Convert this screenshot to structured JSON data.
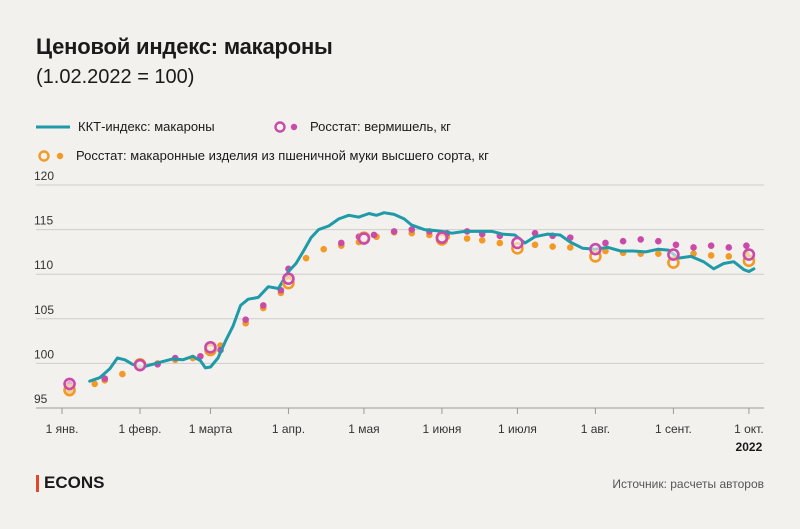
{
  "title": "Ценовой индекс: макароны",
  "subtitle": "(1.02.2022 = 100)",
  "legend": {
    "kkt": "ККТ-индекс: макароны",
    "rosstat_vermicelli": "Росстат: вермишель, кг",
    "rosstat_pasta": "Росстат: макаронные изделия из пшеничной муки высшего сорта, кг"
  },
  "brand": "ECONS",
  "source": "Источник: расчеты авторов",
  "colors": {
    "kkt": "#1f9aa8",
    "vermicelli": "#c94aa8",
    "pasta": "#f39a25"
  },
  "chart_data": {
    "type": "line",
    "ylim": [
      95,
      120
    ],
    "yticks": [
      95,
      100,
      105,
      110,
      115,
      120
    ],
    "xlim": [
      "2022-01-01",
      "2022-10-07"
    ],
    "xticks": [
      {
        "date": "2022-01-01",
        "label": "1 янв."
      },
      {
        "date": "2022-02-01",
        "label": "1 февр."
      },
      {
        "date": "2022-03-01",
        "label": "1 марта"
      },
      {
        "date": "2022-04-01",
        "label": "1 апр."
      },
      {
        "date": "2022-05-01",
        "label": "1 мая"
      },
      {
        "date": "2022-06-01",
        "label": "1 июня"
      },
      {
        "date": "2022-07-01",
        "label": "1 июля"
      },
      {
        "date": "2022-08-01",
        "label": "1 авг."
      },
      {
        "date": "2022-09-01",
        "label": "1 сент."
      },
      {
        "date": "2022-10-01",
        "label": "1 окт."
      }
    ],
    "year_label": "2022",
    "grid": true,
    "series": [
      {
        "name": "ККТ-индекс: макароны",
        "kind": "line",
        "points": [
          [
            "2022-01-12",
            98.0
          ],
          [
            "2022-01-16",
            98.4
          ],
          [
            "2022-01-20",
            99.4
          ],
          [
            "2022-01-23",
            100.6
          ],
          [
            "2022-01-26",
            100.4
          ],
          [
            "2022-01-29",
            99.9
          ],
          [
            "2022-02-02",
            99.6
          ],
          [
            "2022-02-06",
            99.9
          ],
          [
            "2022-02-10",
            100.2
          ],
          [
            "2022-02-14",
            100.5
          ],
          [
            "2022-02-18",
            100.4
          ],
          [
            "2022-02-22",
            100.8
          ],
          [
            "2022-02-25",
            100.3
          ],
          [
            "2022-02-27",
            99.5
          ],
          [
            "2022-03-01",
            99.6
          ],
          [
            "2022-03-04",
            100.6
          ],
          [
            "2022-03-07",
            102.5
          ],
          [
            "2022-03-10",
            104.2
          ],
          [
            "2022-03-13",
            106.5
          ],
          [
            "2022-03-16",
            107.2
          ],
          [
            "2022-03-20",
            107.4
          ],
          [
            "2022-03-24",
            108.6
          ],
          [
            "2022-03-28",
            108.4
          ],
          [
            "2022-04-01",
            110.3
          ],
          [
            "2022-04-04",
            111.2
          ],
          [
            "2022-04-07",
            112.6
          ],
          [
            "2022-04-10",
            114.1
          ],
          [
            "2022-04-13",
            115.0
          ],
          [
            "2022-04-17",
            115.4
          ],
          [
            "2022-04-21",
            116.2
          ],
          [
            "2022-04-25",
            116.6
          ],
          [
            "2022-04-29",
            116.4
          ],
          [
            "2022-05-03",
            116.8
          ],
          [
            "2022-05-06",
            116.6
          ],
          [
            "2022-05-09",
            116.9
          ],
          [
            "2022-05-13",
            116.7
          ],
          [
            "2022-05-17",
            116.2
          ],
          [
            "2022-05-20",
            115.5
          ],
          [
            "2022-05-25",
            115.0
          ],
          [
            "2022-05-29",
            114.9
          ],
          [
            "2022-06-01",
            114.8
          ],
          [
            "2022-06-05",
            114.6
          ],
          [
            "2022-06-10",
            114.8
          ],
          [
            "2022-06-15",
            114.8
          ],
          [
            "2022-06-21",
            114.8
          ],
          [
            "2022-06-25",
            114.5
          ],
          [
            "2022-06-30",
            114.4
          ],
          [
            "2022-07-04",
            113.5
          ],
          [
            "2022-07-08",
            114.2
          ],
          [
            "2022-07-13",
            114.5
          ],
          [
            "2022-07-18",
            114.4
          ],
          [
            "2022-07-22",
            113.6
          ],
          [
            "2022-07-27",
            112.9
          ],
          [
            "2022-08-01",
            112.8
          ],
          [
            "2022-08-06",
            113.0
          ],
          [
            "2022-08-11",
            112.6
          ],
          [
            "2022-08-16",
            112.6
          ],
          [
            "2022-08-21",
            112.5
          ],
          [
            "2022-08-26",
            112.8
          ],
          [
            "2022-08-30",
            112.7
          ],
          [
            "2022-09-03",
            111.8
          ],
          [
            "2022-09-08",
            112.0
          ],
          [
            "2022-09-13",
            111.4
          ],
          [
            "2022-09-17",
            110.6
          ],
          [
            "2022-09-21",
            111.2
          ],
          [
            "2022-09-25",
            111.4
          ],
          [
            "2022-09-29",
            110.5
          ],
          [
            "2022-10-01",
            110.3
          ],
          [
            "2022-10-03",
            110.6
          ]
        ]
      },
      {
        "name": "Росстат: вермишель, кг",
        "kind": "dots",
        "points": [
          [
            "2022-01-04",
            97.7
          ],
          [
            "2022-01-18",
            98.3
          ],
          [
            "2022-02-08",
            99.9
          ],
          [
            "2022-02-15",
            100.6
          ],
          [
            "2022-02-25",
            100.8
          ],
          [
            "2022-03-05",
            101.5
          ],
          [
            "2022-03-15",
            104.9
          ],
          [
            "2022-03-22",
            106.5
          ],
          [
            "2022-03-29",
            108.2
          ],
          [
            "2022-04-01",
            110.6
          ],
          [
            "2022-04-22",
            113.5
          ],
          [
            "2022-04-29",
            114.2
          ],
          [
            "2022-05-05",
            114.4
          ],
          [
            "2022-05-13",
            114.8
          ],
          [
            "2022-05-20",
            115.0
          ],
          [
            "2022-05-27",
            114.8
          ],
          [
            "2022-06-03",
            114.6
          ],
          [
            "2022-06-11",
            114.8
          ],
          [
            "2022-06-17",
            114.5
          ],
          [
            "2022-06-24",
            114.3
          ],
          [
            "2022-07-08",
            114.6
          ],
          [
            "2022-07-15",
            114.3
          ],
          [
            "2022-07-22",
            114.1
          ],
          [
            "2022-08-05",
            113.5
          ],
          [
            "2022-08-12",
            113.7
          ],
          [
            "2022-08-19",
            113.9
          ],
          [
            "2022-08-26",
            113.7
          ],
          [
            "2022-09-02",
            113.3
          ],
          [
            "2022-09-09",
            113.0
          ],
          [
            "2022-09-16",
            113.2
          ],
          [
            "2022-09-23",
            113.0
          ],
          [
            "2022-09-30",
            113.2
          ]
        ]
      },
      {
        "name": "Росстат: макаронные изделия из пшеничной муки высшего сорта, кг",
        "kind": "dots",
        "points": [
          [
            "2022-01-04",
            96.9
          ],
          [
            "2022-01-14",
            97.7
          ],
          [
            "2022-01-18",
            98.1
          ],
          [
            "2022-01-25",
            98.8
          ],
          [
            "2022-02-01",
            99.5
          ],
          [
            "2022-02-08",
            100.0
          ],
          [
            "2022-02-15",
            100.4
          ],
          [
            "2022-02-22",
            100.6
          ],
          [
            "2022-03-01",
            101.3
          ],
          [
            "2022-03-05",
            102.0
          ],
          [
            "2022-03-15",
            104.5
          ],
          [
            "2022-03-22",
            106.2
          ],
          [
            "2022-03-29",
            107.9
          ],
          [
            "2022-04-01",
            109.8
          ],
          [
            "2022-04-08",
            111.8
          ],
          [
            "2022-04-15",
            112.8
          ],
          [
            "2022-04-22",
            113.2
          ],
          [
            "2022-04-29",
            113.6
          ],
          [
            "2022-05-06",
            114.2
          ],
          [
            "2022-05-13",
            114.7
          ],
          [
            "2022-05-20",
            114.6
          ],
          [
            "2022-05-27",
            114.4
          ],
          [
            "2022-06-03",
            114.2
          ],
          [
            "2022-06-11",
            114.0
          ],
          [
            "2022-06-17",
            113.8
          ],
          [
            "2022-06-24",
            113.5
          ],
          [
            "2022-07-08",
            113.3
          ],
          [
            "2022-07-15",
            113.1
          ],
          [
            "2022-07-22",
            113.0
          ],
          [
            "2022-08-05",
            112.6
          ],
          [
            "2022-08-12",
            112.4
          ],
          [
            "2022-08-19",
            112.3
          ],
          [
            "2022-08-26",
            112.3
          ],
          [
            "2022-09-09",
            112.3
          ],
          [
            "2022-09-16",
            112.1
          ],
          [
            "2022-09-23",
            112.0
          ],
          [
            "2022-09-30",
            112.3
          ]
        ]
      },
      {
        "name": "Росстат: вермишель, кг",
        "kind": "rings",
        "points": [
          [
            "2022-01-04",
            97.7
          ],
          [
            "2022-02-01",
            99.8
          ],
          [
            "2022-03-01",
            101.8
          ],
          [
            "2022-04-01",
            109.5
          ],
          [
            "2022-05-01",
            114.0
          ],
          [
            "2022-06-01",
            114.1
          ],
          [
            "2022-07-01",
            113.5
          ],
          [
            "2022-08-01",
            112.8
          ],
          [
            "2022-09-01",
            112.2
          ],
          [
            "2022-10-01",
            112.2
          ]
        ]
      },
      {
        "name": "Росстат: макаронные изделия из пшеничной муки высшего сорта, кг",
        "kind": "rings",
        "points": [
          [
            "2022-01-04",
            97.0
          ],
          [
            "2022-02-01",
            99.9
          ],
          [
            "2022-03-01",
            101.5
          ],
          [
            "2022-04-01",
            109.0
          ],
          [
            "2022-05-01",
            114.1
          ],
          [
            "2022-06-01",
            113.9
          ],
          [
            "2022-07-01",
            112.9
          ],
          [
            "2022-08-01",
            112.0
          ],
          [
            "2022-09-01",
            111.3
          ],
          [
            "2022-10-01",
            111.5
          ]
        ]
      }
    ]
  }
}
